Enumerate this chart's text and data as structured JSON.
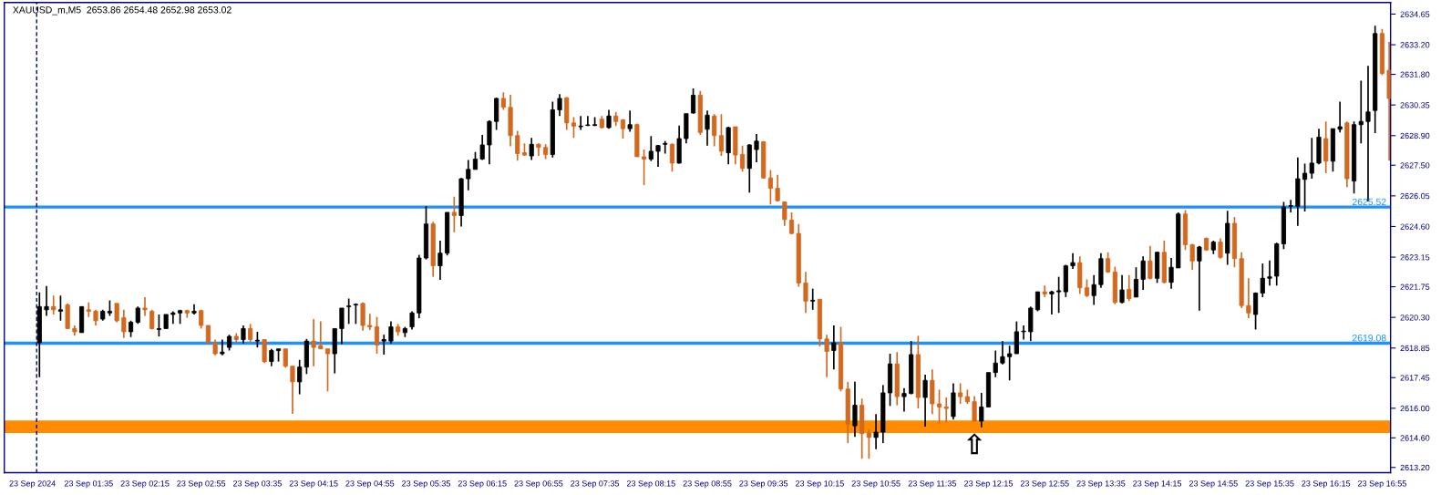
{
  "chart_data": {
    "type": "candlestick",
    "title": "XAUUSD_m,M5  2653.86 2654.48 2652.98 2653.02",
    "x": [
      "2024-09-23T01:00",
      "2024-09-23T01:05",
      "2024-09-23T01:10",
      "2024-09-23T01:15",
      "2024-09-23T01:20",
      "2024-09-23T01:25",
      "2024-09-23T01:30",
      "2024-09-23T01:35",
      "2024-09-23T01:40",
      "2024-09-23T01:45",
      "2024-09-23T01:50",
      "2024-09-23T01:55",
      "2024-09-23T02:00",
      "2024-09-23T02:05",
      "2024-09-23T02:10",
      "2024-09-23T02:15",
      "2024-09-23T02:20",
      "2024-09-23T02:25",
      "2024-09-23T02:30",
      "2024-09-23T02:35",
      "2024-09-23T02:40",
      "2024-09-23T02:45",
      "2024-09-23T02:50",
      "2024-09-23T02:55",
      "2024-09-23T03:00",
      "2024-09-23T03:05",
      "2024-09-23T03:10",
      "2024-09-23T03:15",
      "2024-09-23T03:20",
      "2024-09-23T03:25",
      "2024-09-23T03:30",
      "2024-09-23T03:35",
      "2024-09-23T03:40",
      "2024-09-23T03:45",
      "2024-09-23T03:50",
      "2024-09-23T03:55",
      "2024-09-23T04:00",
      "2024-09-23T04:05",
      "2024-09-23T04:10",
      "2024-09-23T04:15",
      "2024-09-23T04:20",
      "2024-09-23T04:25",
      "2024-09-23T04:30",
      "2024-09-23T04:35",
      "2024-09-23T04:40",
      "2024-09-23T04:45",
      "2024-09-23T04:50",
      "2024-09-23T04:55",
      "2024-09-23T05:00",
      "2024-09-23T05:05",
      "2024-09-23T05:10",
      "2024-09-23T05:15",
      "2024-09-23T05:20",
      "2024-09-23T05:25",
      "2024-09-23T05:30",
      "2024-09-23T05:35",
      "2024-09-23T05:40",
      "2024-09-23T05:45",
      "2024-09-23T05:50",
      "2024-09-23T05:55",
      "2024-09-23T06:00",
      "2024-09-23T06:05",
      "2024-09-23T06:10",
      "2024-09-23T06:15",
      "2024-09-23T06:20",
      "2024-09-23T06:25",
      "2024-09-23T06:30",
      "2024-09-23T06:35",
      "2024-09-23T06:40",
      "2024-09-23T06:45",
      "2024-09-23T06:50",
      "2024-09-23T06:55",
      "2024-09-23T07:00",
      "2024-09-23T07:05",
      "2024-09-23T07:10",
      "2024-09-23T07:15",
      "2024-09-23T07:20",
      "2024-09-23T07:25",
      "2024-09-23T07:30",
      "2024-09-23T07:35",
      "2024-09-23T07:40",
      "2024-09-23T07:45",
      "2024-09-23T07:50",
      "2024-09-23T07:55",
      "2024-09-23T08:00",
      "2024-09-23T08:05",
      "2024-09-23T08:10",
      "2024-09-23T08:15",
      "2024-09-23T08:20",
      "2024-09-23T08:25",
      "2024-09-23T08:30",
      "2024-09-23T08:35",
      "2024-09-23T08:40",
      "2024-09-23T08:45",
      "2024-09-23T08:50",
      "2024-09-23T08:55",
      "2024-09-23T09:00",
      "2024-09-23T09:05",
      "2024-09-23T09:10",
      "2024-09-23T09:15",
      "2024-09-23T09:20",
      "2024-09-23T09:25",
      "2024-09-23T09:30",
      "2024-09-23T09:35",
      "2024-09-23T09:40",
      "2024-09-23T09:45",
      "2024-09-23T09:50",
      "2024-09-23T09:55",
      "2024-09-23T10:00",
      "2024-09-23T10:05",
      "2024-09-23T10:10",
      "2024-09-23T10:15",
      "2024-09-23T10:20",
      "2024-09-23T10:25",
      "2024-09-23T10:30",
      "2024-09-23T10:35",
      "2024-09-23T10:40",
      "2024-09-23T10:45",
      "2024-09-23T10:50",
      "2024-09-23T10:55",
      "2024-09-23T11:00",
      "2024-09-23T11:05",
      "2024-09-23T11:10",
      "2024-09-23T11:15",
      "2024-09-23T11:20",
      "2024-09-23T11:25",
      "2024-09-23T11:30",
      "2024-09-23T11:35",
      "2024-09-23T11:40",
      "2024-09-23T11:45",
      "2024-09-23T11:50",
      "2024-09-23T11:55",
      "2024-09-23T12:00",
      "2024-09-23T12:05",
      "2024-09-23T12:10",
      "2024-09-23T12:15",
      "2024-09-23T12:20",
      "2024-09-23T12:25",
      "2024-09-23T12:30",
      "2024-09-23T12:35",
      "2024-09-23T12:40",
      "2024-09-23T12:45",
      "2024-09-23T12:50",
      "2024-09-23T12:55",
      "2024-09-23T13:00",
      "2024-09-23T13:05",
      "2024-09-23T13:10",
      "2024-09-23T13:15",
      "2024-09-23T13:20",
      "2024-09-23T13:25",
      "2024-09-23T13:30",
      "2024-09-23T13:35",
      "2024-09-23T13:40",
      "2024-09-23T13:45",
      "2024-09-23T13:50",
      "2024-09-23T13:55",
      "2024-09-23T14:00",
      "2024-09-23T14:05",
      "2024-09-23T14:10",
      "2024-09-23T14:15",
      "2024-09-23T14:20",
      "2024-09-23T14:25",
      "2024-09-23T14:30",
      "2024-09-23T14:35",
      "2024-09-23T14:40",
      "2024-09-23T14:45",
      "2024-09-23T14:50",
      "2024-09-23T14:55",
      "2024-09-23T15:00",
      "2024-09-23T15:05",
      "2024-09-23T15:10",
      "2024-09-23T15:15",
      "2024-09-23T15:20",
      "2024-09-23T15:25",
      "2024-09-23T15:30",
      "2024-09-23T15:35",
      "2024-09-23T15:40",
      "2024-09-23T15:45",
      "2024-09-23T15:50",
      "2024-09-23T15:55",
      "2024-09-23T16:00",
      "2024-09-23T16:05",
      "2024-09-23T16:10",
      "2024-09-23T16:15",
      "2024-09-23T16:20",
      "2024-09-23T16:25",
      "2024-09-23T16:30",
      "2024-09-23T16:35",
      "2024-09-23T16:40",
      "2024-09-23T16:45",
      "2024-09-23T16:50",
      "2024-09-23T16:55",
      "2024-09-23T17:00"
    ],
    "ohlc": [
      [
        2619.1,
        2621.48,
        2617.47,
        2620.81
      ],
      [
        2620.66,
        2621.78,
        2620.37,
        2620.81
      ],
      [
        2620.81,
        2621.33,
        2620.44,
        2620.66
      ],
      [
        2620.59,
        2621.33,
        2620.14,
        2620.66
      ],
      [
        2620.89,
        2620.96,
        2619.77,
        2619.77
      ],
      [
        2619.77,
        2619.92,
        2619.43,
        2619.62
      ],
      [
        2619.58,
        2620.81,
        2619.58,
        2620.81
      ],
      [
        2620.66,
        2621.01,
        2620.32,
        2620.59
      ],
      [
        2620.59,
        2620.66,
        2619.92,
        2620.14
      ],
      [
        2620.22,
        2620.66,
        2620.14,
        2620.59
      ],
      [
        2620.51,
        2621.11,
        2620.37,
        2620.59
      ],
      [
        2620.96,
        2620.96,
        2620.07,
        2620.14
      ],
      [
        2620.29,
        2620.66,
        2619.33,
        2619.62
      ],
      [
        2619.62,
        2620.14,
        2619.37,
        2620.07
      ],
      [
        2620.07,
        2620.81,
        2619.99,
        2620.74
      ],
      [
        2620.74,
        2621.26,
        2620.37,
        2620.66
      ],
      [
        2620.59,
        2620.66,
        2619.73,
        2619.77
      ],
      [
        2619.73,
        2620.44,
        2619.4,
        2619.77
      ],
      [
        2619.77,
        2620.44,
        2619.77,
        2620.44
      ],
      [
        2620.44,
        2620.59,
        2619.99,
        2620.51
      ],
      [
        2620.51,
        2620.66,
        2619.99,
        2620.62
      ],
      [
        2620.62,
        2620.66,
        2620.29,
        2620.51
      ],
      [
        2620.51,
        2620.92,
        2620.44,
        2620.59
      ],
      [
        2620.62,
        2620.66,
        2619.77,
        2619.92
      ],
      [
        2619.92,
        2619.92,
        2619.07,
        2619.1
      ],
      [
        2619.1,
        2619.25,
        2618.51,
        2618.58
      ],
      [
        2618.58,
        2619.25,
        2618.51,
        2618.66
      ],
      [
        2618.88,
        2619.48,
        2618.73,
        2619.4
      ],
      [
        2619.4,
        2619.55,
        2619.14,
        2619.25
      ],
      [
        2619.25,
        2619.92,
        2619.07,
        2619.77
      ],
      [
        2619.77,
        2619.99,
        2619.14,
        2619.25
      ],
      [
        2619.18,
        2619.62,
        2618.88,
        2619.22
      ],
      [
        2619.25,
        2619.25,
        2618.14,
        2618.21
      ],
      [
        2618.21,
        2618.81,
        2617.99,
        2618.73
      ],
      [
        2618.73,
        2618.81,
        2618.21,
        2618.81
      ],
      [
        2618.81,
        2618.81,
        2617.92,
        2617.99
      ],
      [
        2617.99,
        2617.99,
        2615.74,
        2617.25
      ],
      [
        2617.25,
        2618.29,
        2616.66,
        2617.95
      ],
      [
        2617.95,
        2619.28,
        2617.62,
        2619.18
      ],
      [
        2619.18,
        2620.22,
        2617.99,
        2618.88
      ],
      [
        2618.96,
        2620.11,
        2618.81,
        2618.81
      ],
      [
        2618.81,
        2618.81,
        2616.8,
        2618.58
      ],
      [
        2618.58,
        2619.77,
        2617.65,
        2619.77
      ],
      [
        2619.77,
        2620.74,
        2619.03,
        2620.74
      ],
      [
        2620.81,
        2621.19,
        2619.99,
        2620.81
      ],
      [
        2620.89,
        2620.96,
        2619.99,
        2620.92
      ],
      [
        2620.96,
        2621.01,
        2619.67,
        2619.92
      ],
      [
        2619.92,
        2620.47,
        2619.7,
        2619.85
      ],
      [
        2619.85,
        2620.32,
        2618.58,
        2618.99
      ],
      [
        2619.18,
        2619.48,
        2618.54,
        2619.25
      ],
      [
        2619.18,
        2620.11,
        2619.07,
        2619.85
      ],
      [
        2619.85,
        2619.99,
        2619.43,
        2619.62
      ],
      [
        2619.58,
        2619.85,
        2619.37,
        2619.77
      ],
      [
        2619.85,
        2620.59,
        2619.73,
        2620.51
      ],
      [
        2620.51,
        2623.26,
        2620.26,
        2623.11
      ],
      [
        2623.11,
        2625.56,
        2623.04,
        2624.72
      ],
      [
        2624.72,
        2624.82,
        2622.22,
        2622.74
      ],
      [
        2622.74,
        2623.93,
        2622.07,
        2623.34
      ],
      [
        2623.34,
        2625.27,
        2623.23,
        2625.27
      ],
      [
        2625.27,
        2626.01,
        2624.33,
        2625.12
      ],
      [
        2625.12,
        2626.9,
        2624.6,
        2626.86
      ],
      [
        2626.86,
        2627.75,
        2626.31,
        2627.3
      ],
      [
        2627.3,
        2628.12,
        2627.3,
        2627.79
      ],
      [
        2627.79,
        2628.93,
        2627.75,
        2628.46
      ],
      [
        2628.46,
        2629.62,
        2627.54,
        2629.57
      ],
      [
        2629.57,
        2630.69,
        2629.17,
        2630.66
      ],
      [
        2630.66,
        2630.95,
        2630.12,
        2630.24
      ],
      [
        2630.24,
        2630.83,
        2628.39,
        2628.9
      ],
      [
        2628.9,
        2629.13,
        2627.72,
        2628.05
      ],
      [
        2628.09,
        2628.53,
        2627.94,
        2627.98
      ],
      [
        2627.94,
        2628.79,
        2627.75,
        2628.49
      ],
      [
        2628.49,
        2628.53,
        2627.94,
        2628.34
      ],
      [
        2628.34,
        2628.49,
        2627.79,
        2628.01
      ],
      [
        2628.01,
        2630.51,
        2627.87,
        2630.12
      ],
      [
        2630.12,
        2630.86,
        2629.83,
        2630.66
      ],
      [
        2630.69,
        2630.72,
        2629.17,
        2629.5
      ],
      [
        2629.5,
        2629.77,
        2628.79,
        2629.35
      ],
      [
        2629.32,
        2629.83,
        2629.17,
        2629.35
      ],
      [
        2629.38,
        2629.83,
        2629.35,
        2629.38
      ],
      [
        2629.38,
        2629.77,
        2629.35,
        2629.42
      ],
      [
        2629.68,
        2629.83,
        2629.23,
        2629.28
      ],
      [
        2629.28,
        2630.12,
        2629.23,
        2629.83
      ],
      [
        2629.83,
        2630.02,
        2629.35,
        2629.57
      ],
      [
        2629.65,
        2629.68,
        2628.76,
        2629.23
      ],
      [
        2629.23,
        2630.09,
        2629.08,
        2629.42
      ],
      [
        2629.42,
        2629.47,
        2627.9,
        2627.9
      ],
      [
        2627.9,
        2628.24,
        2626.56,
        2627.79
      ],
      [
        2627.79,
        2628.88,
        2627.69,
        2628.16
      ],
      [
        2628.16,
        2628.46,
        2627.42,
        2628.43
      ],
      [
        2628.49,
        2628.64,
        2628.05,
        2628.53
      ],
      [
        2628.49,
        2628.53,
        2627.2,
        2627.6
      ],
      [
        2627.6,
        2629.38,
        2627.57,
        2628.76
      ],
      [
        2628.76,
        2629.94,
        2628.53,
        2629.94
      ],
      [
        2629.97,
        2631.13,
        2629.94,
        2630.81
      ],
      [
        2630.81,
        2631.01,
        2628.93,
        2629.05
      ],
      [
        2629.2,
        2630.09,
        2628.43,
        2629.87
      ],
      [
        2629.83,
        2629.91,
        2628.39,
        2628.9
      ],
      [
        2628.9,
        2629.91,
        2627.94,
        2628.16
      ],
      [
        2628.09,
        2629.32,
        2627.54,
        2629.28
      ],
      [
        2629.32,
        2629.32,
        2627.54,
        2627.98
      ],
      [
        2628.01,
        2628.43,
        2627.2,
        2627.35
      ],
      [
        2627.35,
        2628.49,
        2626.2,
        2628.46
      ],
      [
        2628.24,
        2628.98,
        2627.64,
        2628.64
      ],
      [
        2628.61,
        2628.64,
        2626.86,
        2626.9
      ],
      [
        2626.9,
        2627.27,
        2625.64,
        2626.41
      ],
      [
        2626.41,
        2627.05,
        2625.79,
        2625.82
      ],
      [
        2625.76,
        2625.79,
        2624.63,
        2624.93
      ],
      [
        2624.9,
        2625.27,
        2624.23,
        2624.27
      ],
      [
        2624.27,
        2624.72,
        2621.75,
        2621.93
      ],
      [
        2621.93,
        2622.45,
        2620.51,
        2621.07
      ],
      [
        2621.07,
        2621.66,
        2620.66,
        2621.11
      ],
      [
        2621.16,
        2621.16,
        2618.93,
        2619.28
      ],
      [
        2619.28,
        2619.48,
        2617.47,
        2618.69
      ],
      [
        2618.73,
        2619.92,
        2617.84,
        2619.1
      ],
      [
        2619.1,
        2619.85,
        2616.8,
        2616.91
      ],
      [
        2616.91,
        2617.25,
        2614.35,
        2615.25
      ],
      [
        2615.17,
        2617.25,
        2614.65,
        2616.14
      ],
      [
        2616.14,
        2616.46,
        2613.61,
        2614.8
      ],
      [
        2614.83,
        2615.02,
        2613.61,
        2614.62
      ],
      [
        2614.62,
        2615.72,
        2614.06,
        2614.87
      ],
      [
        2614.87,
        2617.1,
        2614.35,
        2616.73
      ],
      [
        2616.73,
        2618.58,
        2616.11,
        2618.1
      ],
      [
        2618.1,
        2618.66,
        2616.14,
        2616.55
      ],
      [
        2616.55,
        2616.95,
        2615.84,
        2616.7
      ],
      [
        2616.7,
        2619.18,
        2616.66,
        2618.54
      ],
      [
        2618.54,
        2619.43,
        2615.99,
        2616.51
      ],
      [
        2616.51,
        2617.59,
        2615.13,
        2617.32
      ],
      [
        2617.32,
        2617.84,
        2615.72,
        2616.21
      ],
      [
        2616.21,
        2616.88,
        2615.27,
        2616.06
      ],
      [
        2616.06,
        2616.51,
        2615.32,
        2615.99
      ],
      [
        2615.61,
        2617.18,
        2615.46,
        2616.73
      ],
      [
        2616.73,
        2617.18,
        2616.21,
        2616.55
      ],
      [
        2616.55,
        2616.88,
        2616.21,
        2616.31
      ],
      [
        2616.31,
        2616.58,
        2615.39,
        2615.39
      ],
      [
        2615.39,
        2616.73,
        2615.1,
        2616.06
      ],
      [
        2616.06,
        2617.69,
        2616.06,
        2617.69
      ],
      [
        2617.69,
        2618.73,
        2617.47,
        2618.14
      ],
      [
        2618.14,
        2619.18,
        2618.07,
        2618.44
      ],
      [
        2618.44,
        2618.96,
        2617.32,
        2618.58
      ],
      [
        2618.58,
        2620.11,
        2618.58,
        2619.62
      ],
      [
        2619.62,
        2619.92,
        2619.25,
        2619.62
      ],
      [
        2619.62,
        2620.81,
        2619.18,
        2620.74
      ],
      [
        2620.66,
        2621.51,
        2620.59,
        2621.51
      ],
      [
        2621.51,
        2621.81,
        2621.26,
        2621.41
      ],
      [
        2621.41,
        2621.56,
        2620.44,
        2621.51
      ],
      [
        2621.51,
        2622.22,
        2620.51,
        2621.56
      ],
      [
        2621.51,
        2622.79,
        2621.26,
        2622.74
      ],
      [
        2622.74,
        2623.34,
        2622.59,
        2622.89
      ],
      [
        2622.89,
        2623.19,
        2621.41,
        2621.7
      ],
      [
        2621.7,
        2622.1,
        2621.26,
        2621.33
      ],
      [
        2621.33,
        2622.3,
        2620.89,
        2621.85
      ],
      [
        2621.85,
        2623.34,
        2621.7,
        2623.08
      ],
      [
        2623.08,
        2623.38,
        2622.4,
        2622.45
      ],
      [
        2622.45,
        2622.7,
        2620.92,
        2621.01
      ],
      [
        2621.01,
        2622.3,
        2620.96,
        2621.6
      ],
      [
        2621.63,
        2622.3,
        2621.07,
        2621.19
      ],
      [
        2621.26,
        2622.67,
        2621.26,
        2622.1
      ],
      [
        2622.1,
        2623.19,
        2621.6,
        2622.97
      ],
      [
        2622.97,
        2623.68,
        2622.1,
        2622.15
      ],
      [
        2622.15,
        2623.41,
        2621.93,
        2623.38
      ],
      [
        2623.38,
        2623.93,
        2621.9,
        2621.96
      ],
      [
        2621.96,
        2623.11,
        2621.66,
        2622.67
      ],
      [
        2622.64,
        2625.27,
        2622.64,
        2625.19
      ],
      [
        2625.19,
        2625.37,
        2623.49,
        2623.74
      ],
      [
        2623.74,
        2623.78,
        2622.55,
        2622.97
      ],
      [
        2622.97,
        2623.68,
        2620.62,
        2623.63
      ],
      [
        2624.04,
        2624.08,
        2623.44,
        2623.49
      ],
      [
        2623.49,
        2623.93,
        2623.29,
        2623.86
      ],
      [
        2623.86,
        2624.04,
        2623.08,
        2623.14
      ],
      [
        2623.34,
        2625.34,
        2622.79,
        2624.75
      ],
      [
        2624.75,
        2625.05,
        2622.67,
        2623.08
      ],
      [
        2623.08,
        2623.38,
        2620.74,
        2620.86
      ],
      [
        2620.86,
        2622.15,
        2620.26,
        2620.51
      ],
      [
        2620.44,
        2621.48,
        2619.73,
        2621.45
      ],
      [
        2621.45,
        2622.85,
        2621.26,
        2622.15
      ],
      [
        2622.15,
        2622.99,
        2621.81,
        2622.22
      ],
      [
        2622.25,
        2623.83,
        2621.81,
        2623.78
      ],
      [
        2623.78,
        2625.76,
        2623.53,
        2625.52
      ],
      [
        2625.56,
        2625.86,
        2625.27,
        2625.56
      ],
      [
        2625.56,
        2627.87,
        2624.63,
        2626.86
      ],
      [
        2626.83,
        2627.57,
        2625.31,
        2627.12
      ],
      [
        2627.12,
        2628.79,
        2626.86,
        2627.6
      ],
      [
        2627.6,
        2629.23,
        2627.54,
        2628.83
      ],
      [
        2628.76,
        2629.57,
        2627.12,
        2627.69
      ],
      [
        2627.69,
        2629.23,
        2627.2,
        2629.23
      ],
      [
        2629.2,
        2630.51,
        2629.05,
        2629.32
      ],
      [
        2629.5,
        2629.57,
        2626.46,
        2626.86
      ],
      [
        2626.75,
        2629.57,
        2626.16,
        2629.42
      ],
      [
        2629.42,
        2631.5,
        2628.53,
        2629.57
      ],
      [
        2629.57,
        2632.2,
        2625.79,
        2630.02
      ],
      [
        2630.09,
        2634.1,
        2629.02,
        2633.73
      ],
      [
        2633.73,
        2633.95,
        2631.76,
        2631.84
      ],
      [
        2631.99,
        2633.33,
        2627.72,
        2630.66
      ]
    ],
    "colors": [
      "#000000",
      "#000000",
      "#d2691e",
      "#000000",
      "#d2691e",
      "#d2691e",
      "#000000",
      "#d2691e",
      "#d2691e",
      "#000000",
      "#000000",
      "#d2691e",
      "#d2691e",
      "#000000",
      "#000000",
      "#d2691e",
      "#d2691e",
      "#000000",
      "#000000",
      "#000000",
      "#000000",
      "#d2691e",
      "#000000",
      "#d2691e",
      "#d2691e",
      "#d2691e",
      "#000000",
      "#000000",
      "#d2691e",
      "#000000",
      "#d2691e",
      "#000000",
      "#d2691e",
      "#000000",
      "#000000",
      "#d2691e",
      "#d2691e",
      "#000000",
      "#000000",
      "#d2691e",
      "#d2691e",
      "#d2691e",
      "#000000",
      "#000000",
      "#000000",
      "#000000",
      "#d2691e",
      "#d2691e",
      "#d2691e",
      "#000000",
      "#000000",
      "#d2691e",
      "#000000",
      "#000000",
      "#000000",
      "#000000",
      "#d2691e",
      "#000000",
      "#000000",
      "#d2691e",
      "#000000",
      "#000000",
      "#000000",
      "#000000",
      "#000000",
      "#000000",
      "#d2691e",
      "#d2691e",
      "#d2691e",
      "#d2691e",
      "#000000",
      "#d2691e",
      "#d2691e",
      "#000000",
      "#000000",
      "#d2691e",
      "#d2691e",
      "#000000",
      "#000000",
      "#000000",
      "#d2691e",
      "#000000",
      "#d2691e",
      "#d2691e",
      "#000000",
      "#d2691e",
      "#d2691e",
      "#000000",
      "#000000",
      "#000000",
      "#d2691e",
      "#000000",
      "#000000",
      "#000000",
      "#d2691e",
      "#000000",
      "#d2691e",
      "#d2691e",
      "#000000",
      "#d2691e",
      "#d2691e",
      "#000000",
      "#000000",
      "#d2691e",
      "#d2691e",
      "#d2691e",
      "#d2691e",
      "#d2691e",
      "#d2691e",
      "#d2691e",
      "#000000",
      "#d2691e",
      "#d2691e",
      "#000000",
      "#d2691e",
      "#d2691e",
      "#000000",
      "#d2691e",
      "#d2691e",
      "#000000",
      "#000000",
      "#000000",
      "#d2691e",
      "#000000",
      "#000000",
      "#d2691e",
      "#000000",
      "#d2691e",
      "#d2691e",
      "#d2691e",
      "#000000",
      "#d2691e",
      "#d2691e",
      "#d2691e",
      "#000000",
      "#000000",
      "#000000",
      "#000000",
      "#000000",
      "#000000",
      "#000000",
      "#000000",
      "#000000",
      "#d2691e",
      "#000000",
      "#000000",
      "#000000",
      "#000000",
      "#d2691e",
      "#d2691e",
      "#000000",
      "#000000",
      "#d2691e",
      "#d2691e",
      "#000000",
      "#d2691e",
      "#000000",
      "#000000",
      "#d2691e",
      "#000000",
      "#d2691e",
      "#000000",
      "#000000",
      "#d2691e",
      "#d2691e",
      "#000000",
      "#d2691e",
      "#000000",
      "#d2691e",
      "#000000",
      "#d2691e",
      "#d2691e",
      "#d2691e",
      "#000000",
      "#000000",
      "#000000",
      "#000000",
      "#000000",
      "#000000",
      "#000000",
      "#000000",
      "#000000",
      "#000000",
      "#d2691e",
      "#000000",
      "#000000",
      "#d2691e",
      "#000000",
      "#000000",
      "#000000",
      "#000000",
      "#d2691e",
      "#d2691e"
    ],
    "xlim": [
      "2024-09-23T00:35",
      "2024-09-23T17:01"
    ],
    "xticks": [
      {
        "value": "2024-09-23T00:55",
        "label": "23 Sep 2024"
      },
      {
        "value": "2024-09-23T01:35",
        "label": "23 Sep 01:35"
      },
      {
        "value": "2024-09-23T02:15",
        "label": "23 Sep 02:15"
      },
      {
        "value": "2024-09-23T02:55",
        "label": "23 Sep 02:55"
      },
      {
        "value": "2024-09-23T03:35",
        "label": "23 Sep 03:35"
      },
      {
        "value": "2024-09-23T04:15",
        "label": "23 Sep 04:15"
      },
      {
        "value": "2024-09-23T04:55",
        "label": "23 Sep 04:55"
      },
      {
        "value": "2024-09-23T05:35",
        "label": "23 Sep 05:35"
      },
      {
        "value": "2024-09-23T06:15",
        "label": "23 Sep 06:15"
      },
      {
        "value": "2024-09-23T06:55",
        "label": "23 Sep 06:55"
      },
      {
        "value": "2024-09-23T07:35",
        "label": "23 Sep 07:35"
      },
      {
        "value": "2024-09-23T08:15",
        "label": "23 Sep 08:15"
      },
      {
        "value": "2024-09-23T08:55",
        "label": "23 Sep 08:55"
      },
      {
        "value": "2024-09-23T09:35",
        "label": "23 Sep 09:35"
      },
      {
        "value": "2024-09-23T10:15",
        "label": "23 Sep 10:15"
      },
      {
        "value": "2024-09-23T10:55",
        "label": "23 Sep 10:55"
      },
      {
        "value": "2024-09-23T11:35",
        "label": "23 Sep 11:35"
      },
      {
        "value": "2024-09-23T12:15",
        "label": "23 Sep 12:15"
      },
      {
        "value": "2024-09-23T12:55",
        "label": "23 Sep 12:55"
      },
      {
        "value": "2024-09-23T13:35",
        "label": "23 Sep 13:35"
      },
      {
        "value": "2024-09-23T14:15",
        "label": "23 Sep 14:15"
      },
      {
        "value": "2024-09-23T14:55",
        "label": "23 Sep 14:55"
      },
      {
        "value": "2024-09-23T15:35",
        "label": "23 Sep 15:35"
      },
      {
        "value": "2024-09-23T16:15",
        "label": "23 Sep 16:15"
      },
      {
        "value": "2024-09-23T16:55",
        "label": "23 Sep 16:55"
      }
    ],
    "ylim": [
      2612.95,
      2635.2
    ],
    "yticks": [
      {
        "value": 2613.2,
        "label": "2613.20"
      },
      {
        "value": 2614.6,
        "label": "2614.60"
      },
      {
        "value": 2616.0,
        "label": "2616.00"
      },
      {
        "value": 2617.45,
        "label": "2617.45"
      },
      {
        "value": 2618.85,
        "label": "2618.85"
      },
      {
        "value": 2620.3,
        "label": "2620.30"
      },
      {
        "value": 2621.75,
        "label": "2621.75"
      },
      {
        "value": 2623.15,
        "label": "2623.15"
      },
      {
        "value": 2624.6,
        "label": "2624.60"
      },
      {
        "value": 2626.05,
        "label": "2626.05"
      },
      {
        "value": 2627.5,
        "label": "2627.50"
      },
      {
        "value": 2628.9,
        "label": "2628.90"
      },
      {
        "value": 2630.35,
        "label": "2630.35"
      },
      {
        "value": 2631.8,
        "label": "2631.80"
      },
      {
        "value": 2633.2,
        "label": "2633.20"
      },
      {
        "value": 2634.65,
        "label": "2634.65"
      }
    ],
    "ref_lines": [
      {
        "axis": "y",
        "value": 2625.52,
        "label": "2625.52",
        "color": "#1e90ff"
      },
      {
        "axis": "y",
        "value": 2619.08,
        "label": "2619.08",
        "color": "#1e90ff"
      },
      {
        "axis": "x",
        "value": "2024-09-23T00:58",
        "color": "#000080",
        "line_style": "dashed"
      }
    ],
    "bands": [
      {
        "axis": "y",
        "from": 2614.83,
        "to": 2615.42,
        "color": "#ff8c00"
      }
    ],
    "annotations": [
      {
        "text": "⇧",
        "x": "2024-09-23T12:05",
        "y": 2614.83
      }
    ],
    "grid": false
  }
}
